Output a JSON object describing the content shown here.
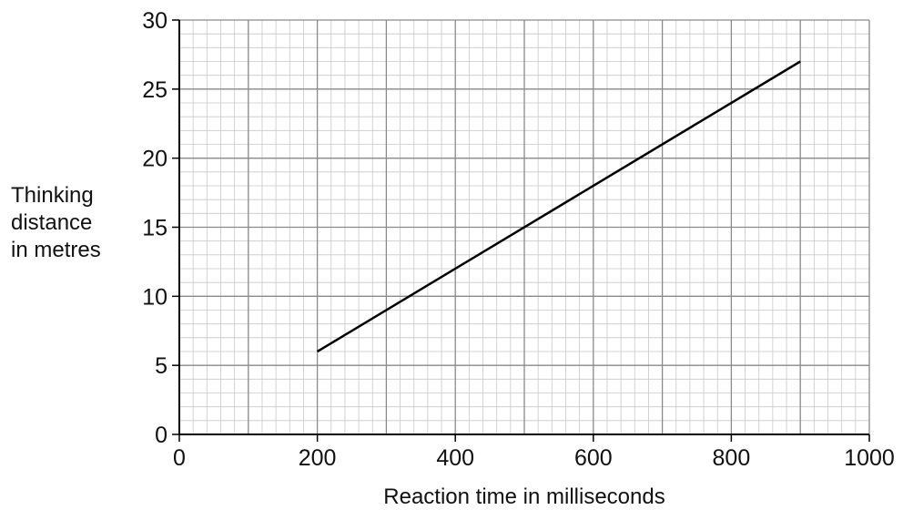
{
  "chart_data": {
    "type": "line",
    "title": "",
    "xlabel": "Reaction time in milliseconds",
    "ylabel_lines": [
      "Thinking",
      "distance",
      "in metres"
    ],
    "xlim": [
      0,
      1000
    ],
    "ylim": [
      0,
      30
    ],
    "x_major_ticks": [
      0,
      200,
      400,
      600,
      800,
      1000
    ],
    "y_major_ticks": [
      0,
      5,
      10,
      15,
      20,
      25,
      30
    ],
    "grid": "on (major and minor)",
    "series": [
      {
        "x": [
          200,
          900
        ],
        "y": [
          6,
          27
        ],
        "color": "#000000"
      }
    ]
  }
}
